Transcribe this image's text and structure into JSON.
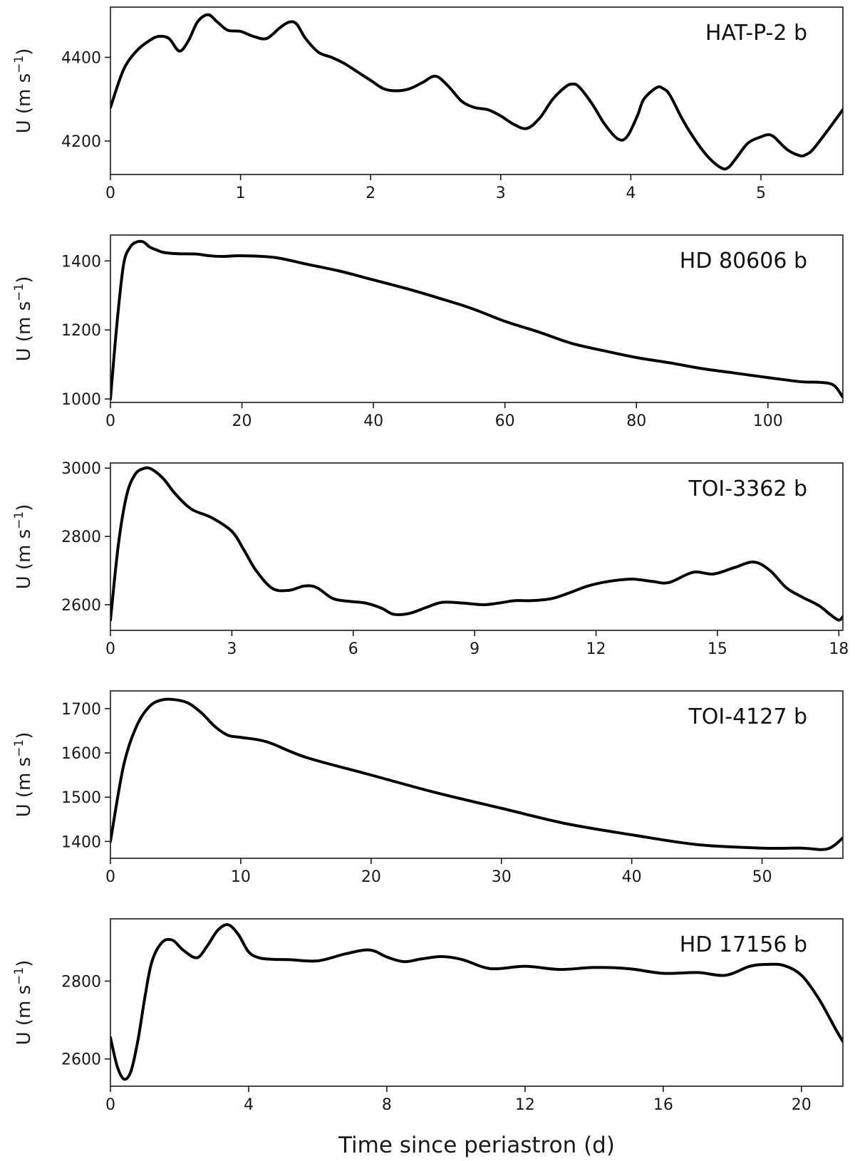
{
  "figure": {
    "xlabel": "Time since periastron  (d)"
  },
  "chart_data": [
    {
      "type": "line",
      "title": "HAT-P-2 b",
      "xlabel": "",
      "ylabel": "U  (m s",
      "ylabel_exponent": "−1",
      "ylabel_suffix": ")",
      "xlim": [
        0,
        5.63
      ],
      "ylim": [
        4120,
        4520
      ],
      "xticks": [
        0,
        1,
        2,
        3,
        4,
        5
      ],
      "yticks": [
        4200,
        4400
      ],
      "grid": false,
      "series": [
        {
          "x": [
            0,
            0.1,
            0.2,
            0.3,
            0.37,
            0.45,
            0.53,
            0.6,
            0.67,
            0.75,
            0.82,
            0.9,
            1.0,
            1.1,
            1.2,
            1.3,
            1.37,
            1.43,
            1.5,
            1.6,
            1.7,
            1.8,
            1.9,
            2.0,
            2.1,
            2.2,
            2.3,
            2.4,
            2.5,
            2.6,
            2.7,
            2.8,
            2.9,
            3.0,
            3.1,
            3.2,
            3.3,
            3.4,
            3.5,
            3.55,
            3.6,
            3.7,
            3.8,
            3.9,
            3.97,
            4.05,
            4.1,
            4.2,
            4.25,
            4.3,
            4.4,
            4.5,
            4.6,
            4.7,
            4.75,
            4.8,
            4.9,
            5.0,
            5.05,
            5.1,
            5.2,
            5.3,
            5.35,
            5.4,
            5.5,
            5.63
          ],
          "y": [
            4280,
            4370,
            4415,
            4440,
            4450,
            4445,
            4415,
            4440,
            4485,
            4502,
            4485,
            4465,
            4462,
            4450,
            4445,
            4470,
            4484,
            4480,
            4445,
            4412,
            4400,
            4385,
            4365,
            4345,
            4325,
            4320,
            4325,
            4340,
            4355,
            4330,
            4295,
            4280,
            4275,
            4260,
            4240,
            4230,
            4255,
            4300,
            4330,
            4336,
            4330,
            4290,
            4240,
            4205,
            4210,
            4260,
            4300,
            4328,
            4325,
            4310,
            4250,
            4200,
            4160,
            4135,
            4137,
            4155,
            4195,
            4210,
            4215,
            4210,
            4180,
            4165,
            4168,
            4180,
            4220,
            4275
          ]
        }
      ]
    },
    {
      "type": "line",
      "title": "HD 80606 b",
      "xlabel": "",
      "ylabel": "U  (m s",
      "ylabel_exponent": "−1",
      "ylabel_suffix": ")",
      "xlim": [
        0,
        111.4
      ],
      "ylim": [
        990,
        1475
      ],
      "xticks": [
        0,
        20,
        40,
        60,
        80,
        100
      ],
      "yticks": [
        1000,
        1200,
        1400
      ],
      "grid": false,
      "series": [
        {
          "x": [
            0,
            1,
            2,
            3,
            4,
            5,
            6,
            7,
            8,
            10,
            13,
            15,
            17,
            20,
            25,
            30,
            35,
            40,
            45,
            50,
            55,
            60,
            65,
            70,
            75,
            80,
            85,
            90,
            95,
            100,
            105,
            108,
            110,
            111.4
          ],
          "y": [
            1000,
            1220,
            1390,
            1440,
            1455,
            1455,
            1440,
            1432,
            1425,
            1421,
            1420,
            1415,
            1413,
            1415,
            1410,
            1390,
            1370,
            1345,
            1320,
            1292,
            1262,
            1225,
            1195,
            1162,
            1140,
            1120,
            1105,
            1088,
            1075,
            1062,
            1050,
            1048,
            1040,
            1005
          ]
        }
      ]
    },
    {
      "type": "line",
      "title": "TOI-3362 b",
      "xlabel": "",
      "ylabel": "U  (m s",
      "ylabel_exponent": "−1",
      "ylabel_suffix": ")",
      "xlim": [
        0,
        18.1
      ],
      "ylim": [
        2525,
        3015
      ],
      "xticks": [
        0,
        3,
        6,
        9,
        12,
        15,
        18
      ],
      "yticks": [
        2600,
        2800,
        3000
      ],
      "grid": false,
      "series": [
        {
          "x": [
            0,
            0.2,
            0.4,
            0.6,
            0.8,
            1.0,
            1.3,
            1.6,
            2.0,
            2.5,
            3.0,
            3.3,
            3.6,
            4.0,
            4.4,
            4.8,
            5.1,
            5.5,
            5.9,
            6.3,
            6.7,
            7.0,
            7.4,
            7.8,
            8.2,
            8.7,
            9.2,
            9.6,
            10.0,
            10.4,
            10.9,
            11.3,
            11.8,
            12.3,
            12.9,
            13.4,
            13.8,
            14.4,
            14.9,
            15.4,
            15.9,
            16.3,
            16.7,
            17.1,
            17.5,
            17.8,
            18.0,
            18.1
          ],
          "y": [
            2555,
            2780,
            2920,
            2980,
            2998,
            2998,
            2970,
            2925,
            2880,
            2855,
            2815,
            2760,
            2700,
            2648,
            2642,
            2655,
            2650,
            2618,
            2610,
            2605,
            2590,
            2572,
            2575,
            2592,
            2607,
            2605,
            2600,
            2605,
            2612,
            2612,
            2618,
            2633,
            2655,
            2668,
            2675,
            2668,
            2665,
            2695,
            2690,
            2708,
            2725,
            2700,
            2650,
            2622,
            2598,
            2570,
            2555,
            2565
          ]
        }
      ]
    },
    {
      "type": "line",
      "title": "TOI-4127 b",
      "xlabel": "",
      "ylabel": "U  (m s",
      "ylabel_exponent": "−1",
      "ylabel_suffix": ")",
      "xlim": [
        0,
        56.2
      ],
      "ylim": [
        1362,
        1740
      ],
      "xticks": [
        0,
        10,
        20,
        30,
        40,
        50
      ],
      "yticks": [
        1400,
        1500,
        1600,
        1700
      ],
      "grid": false,
      "series": [
        {
          "x": [
            0,
            1,
            2,
            3,
            4,
            5,
            6,
            7,
            8,
            9,
            10,
            12,
            15,
            20,
            25,
            30,
            35,
            40,
            45,
            50,
            53,
            55,
            56.2
          ],
          "y": [
            1400,
            1570,
            1660,
            1705,
            1720,
            1720,
            1712,
            1690,
            1660,
            1640,
            1635,
            1625,
            1590,
            1550,
            1510,
            1475,
            1440,
            1415,
            1393,
            1385,
            1385,
            1383,
            1408
          ]
        }
      ]
    },
    {
      "type": "line",
      "title": "HD 17156 b",
      "xlabel": "",
      "ylabel": "U  (m s",
      "ylabel_exponent": "−1",
      "ylabel_suffix": ")",
      "xlim": [
        0,
        21.2
      ],
      "ylim": [
        2530,
        2960
      ],
      "xticks": [
        0,
        4,
        8,
        12,
        16,
        20
      ],
      "yticks": [
        2600,
        2800
      ],
      "grid": false,
      "series": [
        {
          "x": [
            0,
            0.2,
            0.4,
            0.6,
            0.8,
            1.0,
            1.2,
            1.5,
            1.8,
            2.1,
            2.5,
            2.8,
            3.1,
            3.4,
            3.7,
            4.0,
            4.3,
            4.7,
            5.2,
            6.0,
            6.8,
            7.5,
            8.0,
            8.5,
            9.0,
            9.6,
            10.2,
            11.0,
            12.0,
            13.0,
            14.0,
            15.0,
            16.0,
            17.0,
            17.8,
            18.5,
            19.0,
            19.5,
            20.0,
            20.5,
            21.0,
            21.2
          ],
          "y": [
            2655,
            2580,
            2548,
            2570,
            2650,
            2760,
            2850,
            2900,
            2905,
            2880,
            2860,
            2890,
            2930,
            2945,
            2920,
            2875,
            2860,
            2856,
            2855,
            2852,
            2870,
            2880,
            2862,
            2850,
            2857,
            2863,
            2855,
            2832,
            2838,
            2830,
            2835,
            2832,
            2820,
            2822,
            2815,
            2838,
            2843,
            2840,
            2815,
            2755,
            2675,
            2645
          ]
        }
      ]
    }
  ]
}
